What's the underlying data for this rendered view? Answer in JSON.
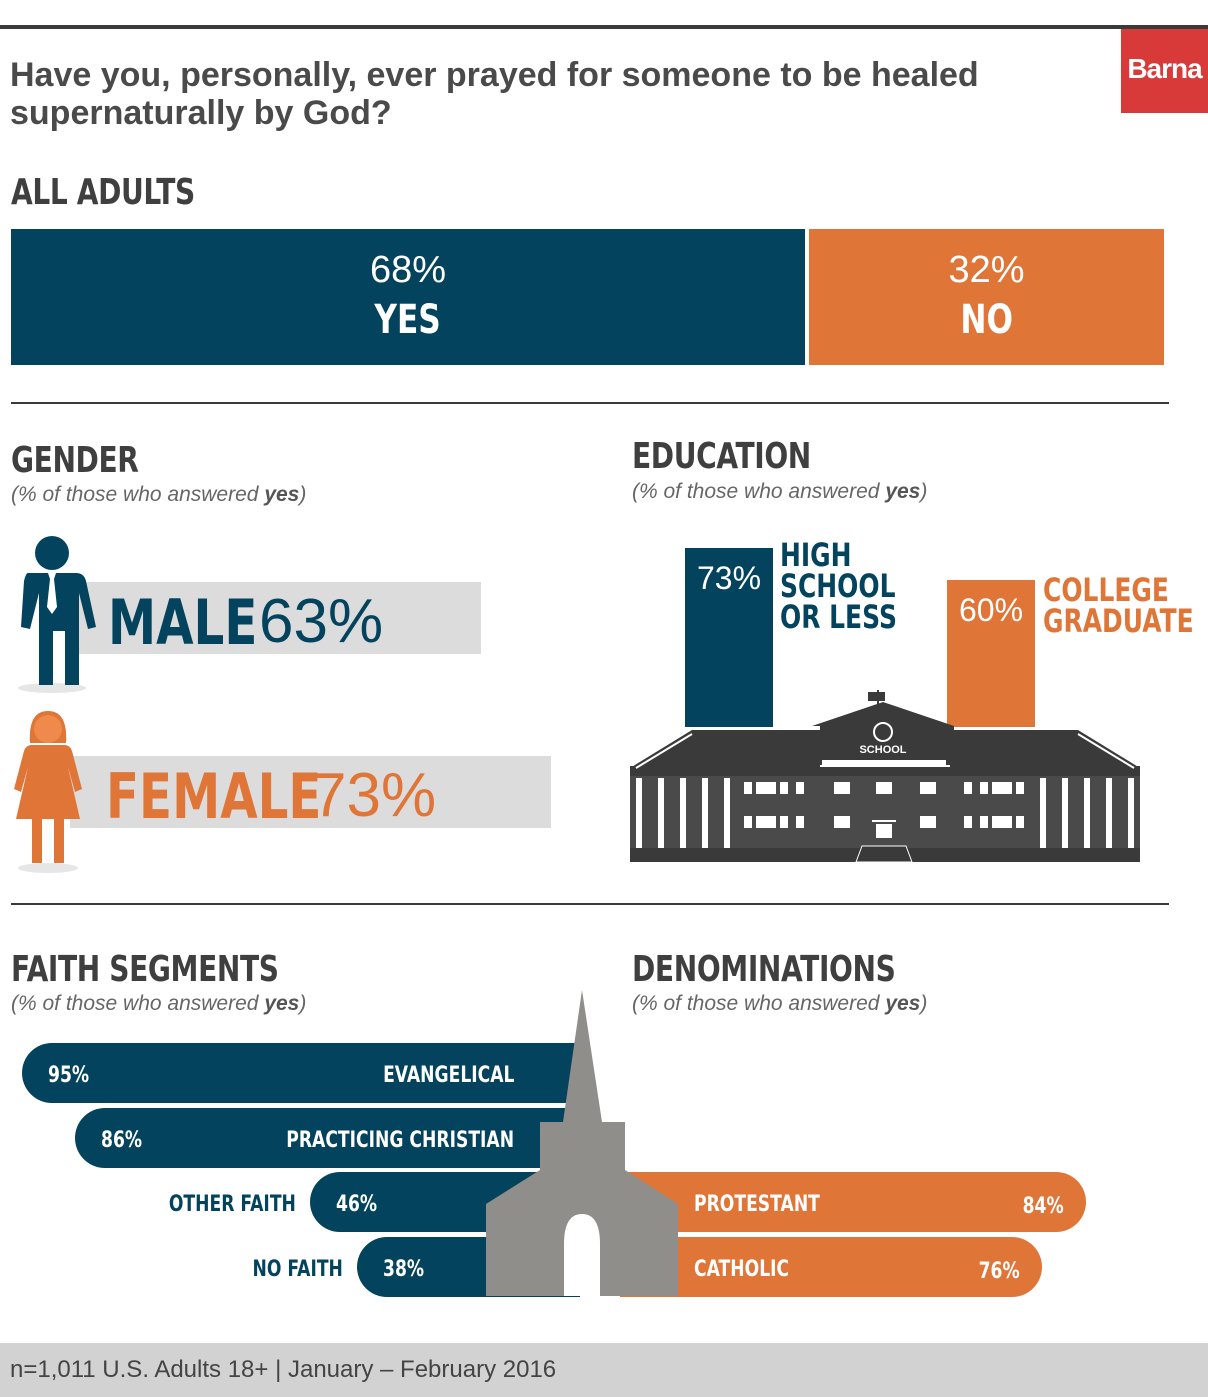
{
  "title": "Have you, personally, ever prayed for someone to be healed supernaturally by God?",
  "logo": "Barna",
  "colors": {
    "navy": "#03435e",
    "orange": "#e07538",
    "gray": "#dcdcdc",
    "dark": "#3a3a3a",
    "steeple": "#8f8e8b"
  },
  "all_adults": {
    "heading": "ALL ADULTS",
    "yes": {
      "value": "68%",
      "label": "YES"
    },
    "no": {
      "value": "32%",
      "label": "NO"
    }
  },
  "gender": {
    "heading": "GENDER",
    "sub_prefix": "(% of those who answered ",
    "sub_bold": "yes",
    "sub_suffix": ")",
    "male": {
      "label": "MALE",
      "value": "63%"
    },
    "female": {
      "label": "FEMALE",
      "value": "73%"
    }
  },
  "education": {
    "heading": "EDUCATION",
    "sub_prefix": "(% of those who answered ",
    "sub_bold": "yes",
    "sub_suffix": ")",
    "hs": {
      "value": "73%",
      "label_lines": [
        "HIGH",
        "SCHOOL",
        "OR LESS"
      ]
    },
    "college": {
      "value": "60%",
      "label_lines": [
        "COLLEGE",
        "GRADUATE"
      ]
    },
    "building_sign": "SCHOOL"
  },
  "faith": {
    "heading": "FAITH SEGMENTS",
    "sub_prefix": "(% of those who answered ",
    "sub_bold": "yes",
    "sub_suffix": ")"
  },
  "denominations": {
    "heading": "DENOMINATIONS",
    "sub_prefix": "(% of those who answered ",
    "sub_bold": "yes",
    "sub_suffix": ")"
  },
  "chart_data": [
    {
      "type": "bar",
      "title": "ALL ADULTS",
      "categories": [
        "YES",
        "NO"
      ],
      "values": [
        68,
        32
      ]
    },
    {
      "type": "bar",
      "title": "GENDER",
      "categories": [
        "MALE",
        "FEMALE"
      ],
      "values": [
        63,
        73
      ]
    },
    {
      "type": "bar",
      "title": "EDUCATION",
      "categories": [
        "HIGH SCHOOL OR LESS",
        "COLLEGE GRADUATE"
      ],
      "values": [
        73,
        60
      ]
    },
    {
      "type": "bar",
      "title": "FAITH SEGMENTS",
      "categories": [
        "EVANGELICAL",
        "PRACTICING CHRISTIAN",
        "OTHER FAITH",
        "NO FAITH"
      ],
      "values": [
        95,
        86,
        46,
        38
      ],
      "value_labels": [
        "95%",
        "86%",
        "46%",
        "38%"
      ]
    },
    {
      "type": "bar",
      "title": "DENOMINATIONS",
      "categories": [
        "PROTESTANT",
        "CATHOLIC"
      ],
      "values": [
        84,
        76
      ],
      "value_labels": [
        "84%",
        "76%"
      ]
    }
  ],
  "footer": "n=1,011 U.S. Adults 18+  |  January – February 2016"
}
